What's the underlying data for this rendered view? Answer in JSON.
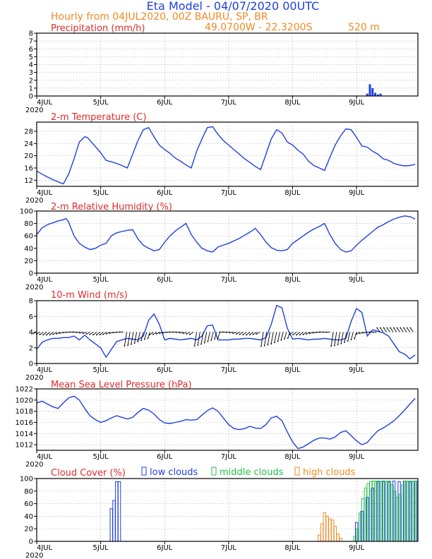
{
  "header": {
    "title": "Eta Model - 04/07/2020 00UTC",
    "subtitle": "Hourly from 04JUL2020, 00Z  BAURU, SP, BR",
    "coords": "49.0700W - 22.3200S",
    "elevation": "520  m"
  },
  "x_axis": {
    "day_labels": [
      "4JUL",
      "5JUL",
      "6JUL",
      "7JUL",
      "8JUL",
      "9JUL"
    ],
    "year_label": "2020"
  },
  "legend": {
    "low": "low clouds",
    "middle": "middle clouds",
    "high": "high clouds"
  },
  "colors": {
    "blue": "#1f3fe0",
    "red": "#e02b2b",
    "orange": "#f08a24",
    "green": "#22c04a"
  },
  "chart_data": [
    {
      "id": "precip",
      "type": "bar",
      "title": "Precipitation (mm/h)",
      "ylim": [
        0,
        8
      ],
      "yticks": [
        0,
        1,
        2,
        3,
        4,
        5,
        6,
        7,
        8
      ],
      "grid": true,
      "x": [
        124,
        125,
        126,
        127,
        128,
        129
      ],
      "values": [
        0.3,
        1.5,
        1.0,
        0.4,
        0.2,
        0.3
      ]
    },
    {
      "id": "temp",
      "type": "line",
      "title": "2-m Temperature (C)",
      "ylim": [
        10,
        31
      ],
      "yticks": [
        12,
        16,
        20,
        24,
        28
      ],
      "grid": true,
      "x": [
        0,
        3,
        6,
        9,
        10,
        12,
        14,
        16,
        18,
        19,
        20,
        22,
        23,
        24,
        26,
        28,
        30,
        32,
        34,
        36,
        38,
        40,
        42,
        44,
        46,
        48,
        50,
        52,
        54,
        56,
        58,
        60,
        62,
        64,
        66,
        68,
        70,
        72,
        74,
        76,
        78,
        80,
        82,
        84,
        86,
        88,
        90,
        92,
        94,
        96,
        98,
        100,
        102,
        104,
        106,
        108,
        110,
        112,
        114,
        116,
        118,
        120,
        122,
        124,
        126,
        128,
        130,
        132,
        134,
        136,
        138,
        140,
        142
      ],
      "values": [
        15,
        13.5,
        12.2,
        11.1,
        10.8,
        14,
        19,
        24.5,
        26.2,
        26,
        25,
        23,
        22,
        21,
        18.5,
        18,
        17.5,
        16.8,
        16,
        20.5,
        25,
        28.5,
        29.2,
        26.2,
        23.5,
        22,
        20.8,
        19.2,
        18.2,
        17,
        16,
        21.5,
        25.5,
        29.2,
        29.5,
        27,
        25,
        23.5,
        22,
        20.5,
        19,
        17.8,
        16.5,
        15.5,
        20.5,
        25.5,
        28.5,
        27.5,
        24.5,
        23.5,
        21.8,
        20.5,
        18.2,
        16.8,
        16,
        15.2,
        19.5,
        23.5,
        26.5,
        28.8,
        28.5,
        26,
        23.2,
        22.8,
        21.5,
        20.5,
        19,
        18.5,
        17.5,
        17,
        16.7,
        16.8,
        17.2
      ]
    },
    {
      "id": "rh",
      "type": "line",
      "title": "2-m Relative Humidity (%)",
      "ylim": [
        0,
        100
      ],
      "yticks": [
        0,
        20,
        40,
        60,
        80,
        100
      ],
      "grid": true,
      "x": [
        0,
        2,
        4,
        6,
        8,
        10,
        11,
        12,
        14,
        16,
        18,
        20,
        22,
        24,
        26,
        28,
        30,
        32,
        34,
        36,
        38,
        40,
        42,
        44,
        46,
        48,
        50,
        52,
        54,
        56,
        58,
        60,
        62,
        64,
        66,
        68,
        70,
        72,
        74,
        76,
        78,
        80,
        82,
        84,
        86,
        88,
        90,
        92,
        94,
        96,
        98,
        100,
        102,
        104,
        106,
        108,
        110,
        112,
        114,
        116,
        118,
        120,
        122,
        124,
        126,
        128,
        130,
        132,
        134,
        136,
        138,
        140,
        142
      ],
      "values": [
        62,
        73,
        78,
        81,
        84,
        86,
        88,
        82,
        60,
        48,
        42,
        38,
        40,
        45,
        48,
        60,
        65,
        67,
        69,
        70,
        55,
        45,
        40,
        36,
        38,
        50,
        60,
        68,
        74,
        80,
        62,
        50,
        40,
        36,
        34,
        42,
        45,
        48,
        52,
        56,
        61,
        66,
        72,
        62,
        50,
        41,
        37,
        36,
        38,
        48,
        54,
        60,
        66,
        71,
        75,
        80,
        62,
        48,
        38,
        34,
        36,
        45,
        53,
        60,
        67,
        74,
        78,
        83,
        87,
        90,
        92,
        91,
        87
      ]
    },
    {
      "id": "wind",
      "type": "line",
      "title": "10-m Wind (m/s)",
      "ylim": [
        0,
        8
      ],
      "yticks": [
        0,
        2,
        4,
        6,
        8
      ],
      "grid": true,
      "barbs": "wind vectors along 4 m/s",
      "x": [
        0,
        2,
        4,
        6,
        8,
        10,
        12,
        14,
        16,
        18,
        20,
        22,
        24,
        26,
        28,
        30,
        32,
        34,
        36,
        38,
        40,
        42,
        44,
        46,
        48,
        50,
        52,
        54,
        56,
        58,
        60,
        62,
        64,
        66,
        68,
        70,
        72,
        74,
        76,
        78,
        80,
        82,
        84,
        86,
        88,
        90,
        92,
        94,
        96,
        98,
        100,
        102,
        104,
        106,
        108,
        110,
        112,
        114,
        116,
        118,
        120,
        122,
        124,
        126,
        128,
        130,
        132,
        134,
        136,
        138,
        140,
        142
      ],
      "values": [
        1.8,
        2.7,
        3.0,
        3.2,
        3.2,
        3.3,
        3.3,
        3.5,
        3.0,
        3.6,
        3.0,
        2.5,
        2.0,
        0.8,
        1.8,
        2.8,
        3.0,
        3.2,
        3.1,
        3.0,
        3.5,
        5.5,
        6.3,
        5.0,
        3.0,
        3.2,
        3.1,
        3.0,
        3.1,
        3.2,
        3.0,
        3.5,
        4.8,
        4.9,
        3.0,
        3.0,
        3.0,
        3.1,
        3.1,
        3.2,
        3.2,
        3.1,
        3.0,
        3.3,
        5.0,
        7.4,
        7.1,
        4.5,
        3.1,
        3.2,
        3.1,
        3.0,
        3.1,
        3.1,
        3.2,
        3.1,
        3.0,
        3.0,
        3.2,
        5.4,
        7.0,
        6.5,
        3.5,
        4.3,
        4.1,
        3.9,
        3.5,
        2.5,
        1.5,
        1.2,
        0.6,
        1.1
      ]
    },
    {
      "id": "mslp",
      "type": "line",
      "title": "Mean Sea Level Pressure (hPa)",
      "ylim": [
        1011,
        1022
      ],
      "yticks": [
        1012,
        1014,
        1016,
        1018,
        1020,
        1022
      ],
      "grid": true,
      "x": [
        0,
        2,
        4,
        6,
        8,
        10,
        12,
        14,
        16,
        18,
        20,
        22,
        24,
        26,
        28,
        30,
        32,
        34,
        36,
        38,
        40,
        42,
        44,
        46,
        48,
        50,
        52,
        54,
        56,
        58,
        60,
        62,
        64,
        66,
        68,
        70,
        72,
        74,
        76,
        78,
        80,
        82,
        84,
        86,
        88,
        90,
        92,
        94,
        96,
        98,
        100,
        102,
        104,
        106,
        108,
        110,
        112,
        114,
        116,
        118,
        120,
        122,
        124,
        126,
        128,
        130,
        132,
        134,
        136,
        138,
        140,
        142
      ],
      "values": [
        1019.5,
        1019.8,
        1019.3,
        1018.8,
        1018.5,
        1019.5,
        1020.4,
        1020.7,
        1020.0,
        1018.5,
        1017.2,
        1016.5,
        1016.0,
        1016.3,
        1016.8,
        1017.2,
        1016.9,
        1016.6,
        1016.9,
        1017.8,
        1018.5,
        1018.2,
        1017.5,
        1016.5,
        1015.9,
        1015.8,
        1016.0,
        1016.2,
        1016.5,
        1016.4,
        1016.5,
        1017.3,
        1018.1,
        1018.6,
        1018.0,
        1016.8,
        1015.6,
        1014.9,
        1014.7,
        1014.9,
        1015.3,
        1015.0,
        1014.9,
        1015.6,
        1016.8,
        1017.1,
        1016.3,
        1014.3,
        1012.5,
        1011.3,
        1011.6,
        1012.2,
        1012.8,
        1013.2,
        1013.2,
        1013.0,
        1013.4,
        1014.2,
        1014.5,
        1013.6,
        1012.7,
        1012.0,
        1012.4,
        1013.5,
        1014.5,
        1015.0,
        1015.6,
        1016.3,
        1017.2,
        1018.2,
        1019.3,
        1020.3
      ]
    },
    {
      "id": "cloud",
      "type": "bar",
      "title": "Cloud Cover (%)",
      "ylim": [
        0,
        100
      ],
      "yticks": [
        0,
        20,
        40,
        60,
        80,
        100
      ],
      "grid": true,
      "series": [
        {
          "name": "low clouds",
          "x": [
            28,
            29,
            30,
            31,
            120,
            122,
            124,
            126,
            128,
            130,
            132,
            134,
            136,
            138,
            140,
            142
          ],
          "values": [
            52,
            65,
            95,
            95,
            30,
            48,
            70,
            85,
            95,
            96,
            95,
            96,
            95,
            96,
            95,
            96
          ]
        },
        {
          "name": "middle clouds",
          "x": [
            119,
            120,
            121,
            122,
            123,
            124,
            125,
            126,
            127,
            128,
            129,
            130,
            131,
            132,
            133,
            134,
            135,
            136,
            137,
            138,
            139,
            140,
            141,
            142
          ],
          "values": [
            8,
            20,
            45,
            68,
            85,
            92,
            95,
            96,
            96,
            96,
            96,
            95,
            96,
            96,
            90,
            80,
            70,
            75,
            90,
            96,
            96,
            96,
            96,
            96
          ]
        },
        {
          "name": "high clouds",
          "x": [
            106,
            107,
            108,
            109,
            110,
            111,
            112,
            113,
            114
          ],
          "values": [
            10,
            28,
            46,
            40,
            36,
            34,
            24,
            12,
            5
          ]
        }
      ]
    }
  ]
}
